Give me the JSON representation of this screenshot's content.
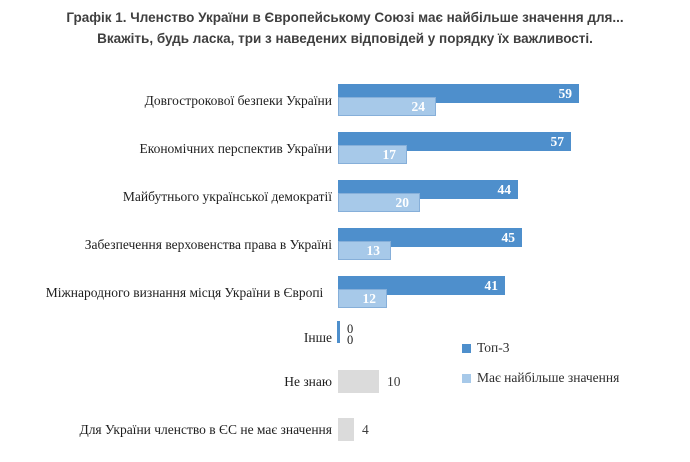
{
  "title": {
    "line1": "Графік 1. Членство України в Європейському Союзі має найбільше значення для...",
    "line2": "Вкажіть, будь ласка, три з наведених відповідей у порядку їх важливості."
  },
  "legend": [
    {
      "label": "Топ-3",
      "color": "#4e8fcc"
    },
    {
      "label": "Має найбільше значення",
      "color": "#a7c9e9"
    }
  ],
  "colors": {
    "top3_bar": "#4e8fcc",
    "most_bar": "#a7c9e9",
    "gray_bar": "#dbdbdb",
    "value_text": "#ffffff"
  },
  "chart_data": {
    "type": "bar",
    "orientation": "horizontal",
    "title": "Графік 1. Членство України в Європейському Союзі має найбільше значення для... Вкажіть, будь ласка, три з наведених відповідей у порядку їх важливості.",
    "categories": [
      "Довгострокової безпеки України",
      "Економічних перспектив України",
      "Майбутнього української демократії",
      "Забезпечення верховенства права в Україні",
      "Міжнародного визнання місця України в Європі",
      "Інше",
      "Не знаю",
      "Для України членство в ЄС не має значення"
    ],
    "series": [
      {
        "name": "Топ-3",
        "color": "#4e8fcc",
        "values": [
          59,
          57,
          44,
          45,
          41,
          0,
          null,
          null
        ]
      },
      {
        "name": "Має найбільше значення",
        "color": "#a7c9e9",
        "values": [
          24,
          17,
          20,
          13,
          12,
          0,
          null,
          null
        ]
      }
    ],
    "single_gray_bars": [
      {
        "category": "Не знаю",
        "value": 10
      },
      {
        "category": "Для України членство в ЄС не має значення",
        "value": 4
      }
    ],
    "gray_color": "#dbdbdb",
    "value_labels": "shown",
    "xlim": [
      0,
      70
    ],
    "grid": false,
    "legend_position": "inside-bottom-right"
  }
}
